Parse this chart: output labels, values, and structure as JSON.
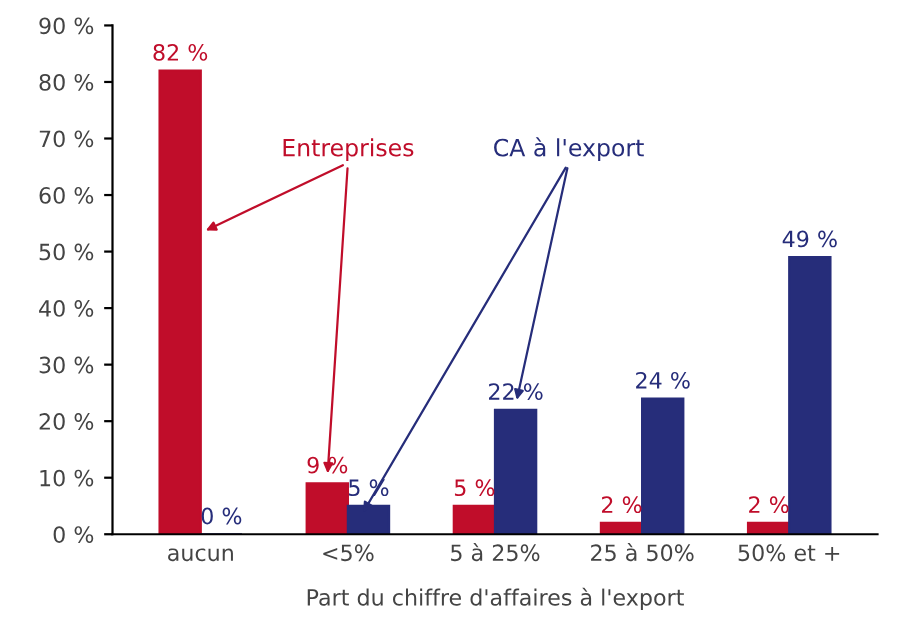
{
  "chart_data": {
    "type": "bar",
    "xlabel": "Part du chiffre d'affaires à l'export",
    "categories": [
      "aucun",
      "<5%",
      "5 à 25%",
      "25 à 50%",
      "50% et +"
    ],
    "series": [
      {
        "name": "Entreprises",
        "color": "#c00d2a",
        "values": [
          82,
          9,
          5,
          2,
          2
        ],
        "value_labels": [
          "82 %",
          "9 %",
          "5 %",
          "2 %",
          "2 %"
        ]
      },
      {
        "name": "CA à l'export",
        "color": "#262d7a",
        "values": [
          0,
          5,
          22,
          24,
          49
        ],
        "value_labels": [
          "0 %",
          "5 %",
          "22 %",
          "24 %",
          "49 %"
        ]
      }
    ],
    "ylim": [
      0,
      90
    ],
    "yticks": [
      {
        "value": 0,
        "label": "0 %"
      },
      {
        "value": 10,
        "label": "10 %"
      },
      {
        "value": 20,
        "label": "20 %"
      },
      {
        "value": 30,
        "label": "30 %"
      },
      {
        "value": 40,
        "label": "40 %"
      },
      {
        "value": 50,
        "label": "50 %"
      },
      {
        "value": 60,
        "label": "60 %"
      },
      {
        "value": 70,
        "label": "70 %"
      },
      {
        "value": 80,
        "label": "80 %"
      },
      {
        "value": 90,
        "label": "90 %"
      }
    ],
    "grid": false,
    "legend": false
  }
}
